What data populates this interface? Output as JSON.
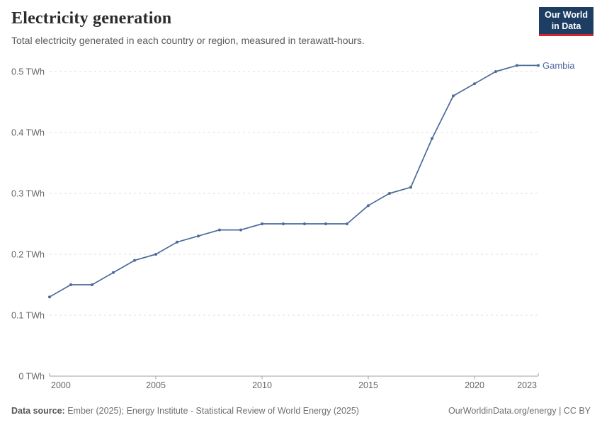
{
  "header": {
    "title": "Electricity generation",
    "subtitle": "Total electricity generated in each country or region, measured in terawatt-hours.",
    "logo": {
      "line1": "Our World",
      "line2": "in Data",
      "bg_color": "#1d3d63",
      "accent_color": "#d8232a"
    }
  },
  "chart_data": {
    "type": "line",
    "title": "Electricity generation",
    "unit": "TWh",
    "x": [
      2000,
      2001,
      2002,
      2003,
      2004,
      2005,
      2006,
      2007,
      2008,
      2009,
      2010,
      2011,
      2012,
      2013,
      2014,
      2015,
      2016,
      2017,
      2018,
      2019,
      2020,
      2021,
      2022,
      2023
    ],
    "series": [
      {
        "name": "Gambia",
        "color": "#4c6a9c",
        "values": [
          0.13,
          0.15,
          0.15,
          0.17,
          0.19,
          0.2,
          0.22,
          0.23,
          0.24,
          0.24,
          0.25,
          0.25,
          0.25,
          0.25,
          0.25,
          0.28,
          0.3,
          0.31,
          0.39,
          0.46,
          0.48,
          0.5,
          0.51,
          0.51
        ]
      }
    ],
    "ylim": [
      0,
      0.5
    ],
    "y_ticks": [
      0,
      0.1,
      0.2,
      0.3,
      0.4,
      0.5
    ],
    "y_tick_labels": [
      "0 TWh",
      "0.1 TWh",
      "0.2 TWh",
      "0.3 TWh",
      "0.4 TWh",
      "0.5 TWh"
    ],
    "x_ticks": [
      2000,
      2005,
      2010,
      2015,
      2020,
      2023
    ],
    "grid": "horizontal-dashed",
    "legend_position": "end-of-line-label",
    "colors": {
      "grid": "#dedede",
      "axis": "#a2a2a2",
      "tick_text": "#666666"
    }
  },
  "footer": {
    "source_label": "Data source:",
    "source_text": " Ember (2025); Energy Institute - Statistical Review of World Energy (2025)",
    "link_text": "OurWorldinData.org/energy | CC BY"
  }
}
